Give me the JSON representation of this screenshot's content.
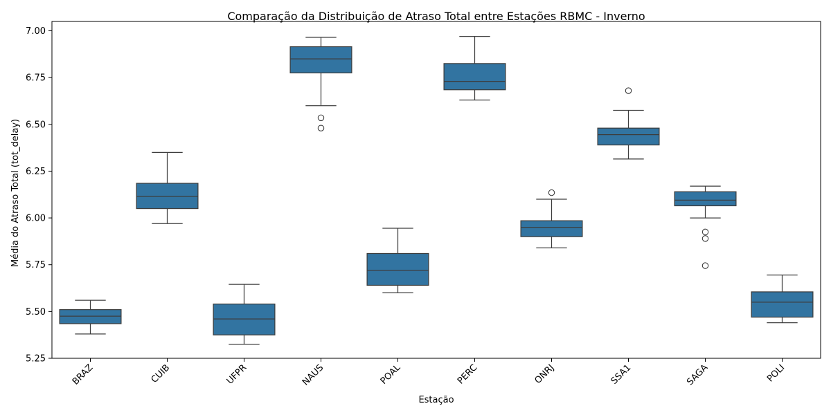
{
  "chart_data": {
    "type": "box",
    "title": "Comparação da Distribuição de Atraso Total entre Estações RBMC - Inverno",
    "xlabel": "Estação",
    "ylabel": "Média do Atraso Total (tot_delay)",
    "ylim": [
      5.25,
      7.05
    ],
    "yticks": [
      "5.25",
      "5.50",
      "5.75",
      "6.00",
      "6.25",
      "6.50",
      "6.75",
      "7.00"
    ],
    "grid": false,
    "box_color": "#3274a1",
    "line_color": "#3d3d3d",
    "categories": [
      "BRAZ",
      "CUIB",
      "UFPR",
      "NAUS",
      "POAL",
      "PERC",
      "ONRJ",
      "SSA1",
      "SAGA",
      "POLI"
    ],
    "boxes": [
      {
        "station": "BRAZ",
        "whisker_low": 5.38,
        "q1": 5.435,
        "median": 5.475,
        "q3": 5.51,
        "whisker_high": 5.56,
        "outliers": []
      },
      {
        "station": "CUIB",
        "whisker_low": 5.97,
        "q1": 6.05,
        "median": 6.115,
        "q3": 6.185,
        "whisker_high": 6.35,
        "outliers": []
      },
      {
        "station": "UFPR",
        "whisker_low": 5.325,
        "q1": 5.375,
        "median": 5.46,
        "q3": 5.54,
        "whisker_high": 5.645,
        "outliers": []
      },
      {
        "station": "NAUS",
        "whisker_low": 6.6,
        "q1": 6.775,
        "median": 6.85,
        "q3": 6.915,
        "whisker_high": 6.965,
        "outliers": [
          6.535,
          6.48
        ]
      },
      {
        "station": "POAL",
        "whisker_low": 5.6,
        "q1": 5.64,
        "median": 5.72,
        "q3": 5.81,
        "whisker_high": 5.945,
        "outliers": []
      },
      {
        "station": "PERC",
        "whisker_low": 6.63,
        "q1": 6.685,
        "median": 6.73,
        "q3": 6.825,
        "whisker_high": 6.97,
        "outliers": []
      },
      {
        "station": "ONRJ",
        "whisker_low": 5.84,
        "q1": 5.9,
        "median": 5.95,
        "q3": 5.985,
        "whisker_high": 6.1,
        "outliers": [
          6.135
        ]
      },
      {
        "station": "SSA1",
        "whisker_low": 6.315,
        "q1": 6.39,
        "median": 6.445,
        "q3": 6.48,
        "whisker_high": 6.575,
        "outliers": [
          6.68
        ]
      },
      {
        "station": "SAGA",
        "whisker_low": 6.0,
        "q1": 6.065,
        "median": 6.095,
        "q3": 6.14,
        "whisker_high": 6.17,
        "outliers": [
          5.925,
          5.89,
          5.745
        ]
      },
      {
        "station": "POLI",
        "whisker_low": 5.44,
        "q1": 5.47,
        "median": 5.55,
        "q3": 5.605,
        "whisker_high": 5.695,
        "outliers": []
      }
    ]
  }
}
